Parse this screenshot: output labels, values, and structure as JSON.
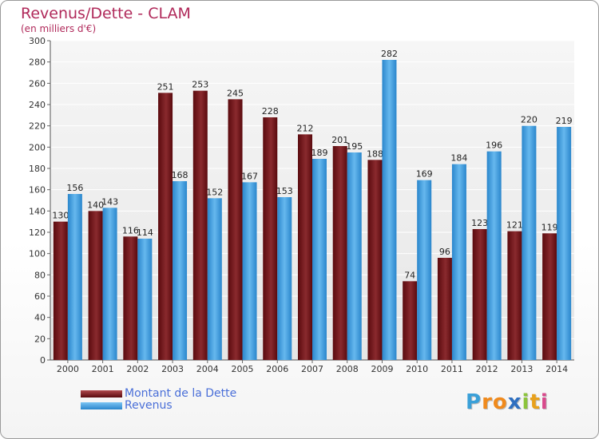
{
  "chart_data": {
    "type": "bar",
    "title": "Revenus/Dette - CLAM",
    "subtitle": "(en milliers d'€)",
    "categories": [
      "2000",
      "2001",
      "2002",
      "2003",
      "2004",
      "2005",
      "2006",
      "2007",
      "2008",
      "2009",
      "2010",
      "2011",
      "2012",
      "2013",
      "2014"
    ],
    "series": [
      {
        "name": "Montant de la Dette",
        "color": "#7a1a1e",
        "values": [
          130,
          140,
          116,
          251,
          253,
          245,
          228,
          212,
          201,
          188,
          74,
          96,
          123,
          121,
          119
        ]
      },
      {
        "name": "Revenus",
        "color": "#3a9ae0",
        "values": [
          156,
          143,
          114,
          168,
          152,
          167,
          153,
          189,
          195,
          282,
          169,
          184,
          196,
          220,
          219
        ]
      }
    ],
    "ylim": [
      0,
      300
    ],
    "yticks": [
      0,
      20,
      40,
      60,
      80,
      100,
      120,
      140,
      160,
      180,
      200,
      220,
      240,
      260,
      280,
      300
    ],
    "grid": true,
    "legend_position": "bottom-left"
  },
  "logo": {
    "letters": [
      "P",
      "r",
      "o",
      "x",
      "i",
      "t",
      "i"
    ],
    "colors": [
      "#3aa0d8",
      "#f08a1c",
      "#f08a1c",
      "#2e6fc0",
      "#8cc43c",
      "#e8a11c",
      "#d94a8c"
    ]
  }
}
